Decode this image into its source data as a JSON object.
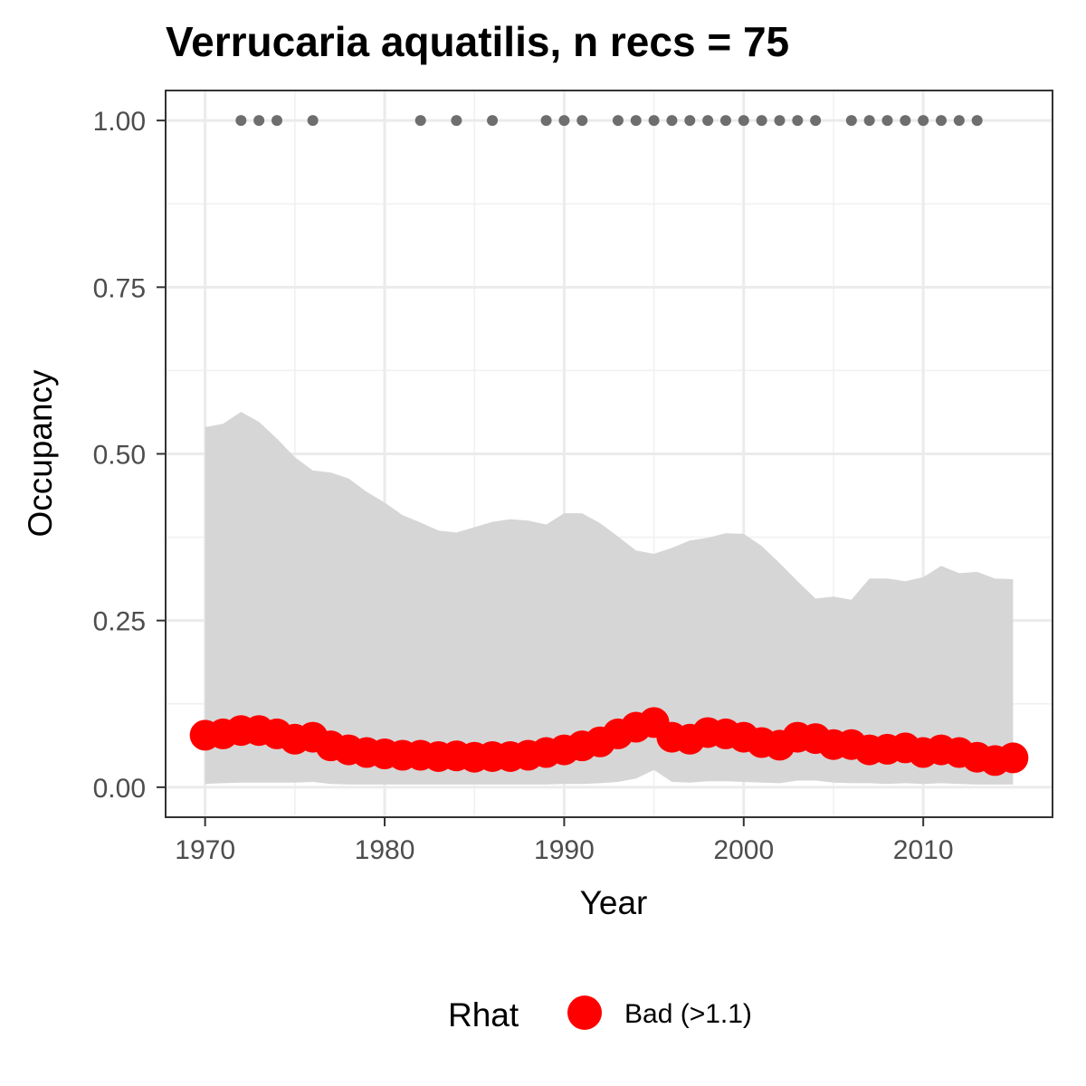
{
  "chart_data": {
    "type": "line",
    "title": "Verrucaria aquatilis, n recs = 75",
    "xlabel": "Year",
    "ylabel": "Occupancy",
    "xlim": [
      1967.8,
      2017.2
    ],
    "ylim": [
      -0.045,
      1.045
    ],
    "x_ticks": [
      1970,
      1980,
      1990,
      2000,
      2010
    ],
    "x_tick_labels": [
      "1970",
      "1980",
      "1990",
      "2000",
      "2010"
    ],
    "y_ticks": [
      0,
      0.25,
      0.5,
      0.75,
      1.0
    ],
    "y_tick_labels": [
      "0.00",
      "0.25",
      "0.50",
      "0.75",
      "1.00"
    ],
    "grid": true,
    "legend": {
      "title": "Rhat",
      "position": "bottom",
      "items": [
        {
          "label": "Bad (>1.1)",
          "color": "#ff0000"
        }
      ]
    },
    "x": [
      1970,
      1971,
      1972,
      1973,
      1974,
      1975,
      1976,
      1977,
      1978,
      1979,
      1980,
      1981,
      1982,
      1983,
      1984,
      1985,
      1986,
      1987,
      1988,
      1989,
      1990,
      1991,
      1992,
      1993,
      1994,
      1995,
      1996,
      1997,
      1998,
      1999,
      2000,
      2001,
      2002,
      2003,
      2004,
      2005,
      2006,
      2007,
      2008,
      2009,
      2010,
      2011,
      2012,
      2013,
      2014,
      2015
    ],
    "series": [
      {
        "name": "Bad (>1.1)",
        "color": "#ff0000",
        "mean": [
          0.078,
          0.08,
          0.085,
          0.085,
          0.08,
          0.072,
          0.075,
          0.062,
          0.056,
          0.052,
          0.05,
          0.048,
          0.048,
          0.046,
          0.047,
          0.045,
          0.046,
          0.046,
          0.048,
          0.052,
          0.056,
          0.062,
          0.068,
          0.08,
          0.09,
          0.097,
          0.075,
          0.072,
          0.082,
          0.08,
          0.075,
          0.067,
          0.063,
          0.075,
          0.073,
          0.064,
          0.064,
          0.056,
          0.057,
          0.059,
          0.052,
          0.056,
          0.052,
          0.045,
          0.04,
          0.044
        ],
        "lower": [
          0.005,
          0.006,
          0.007,
          0.007,
          0.007,
          0.007,
          0.008,
          0.005,
          0.004,
          0.004,
          0.004,
          0.004,
          0.004,
          0.004,
          0.004,
          0.004,
          0.004,
          0.004,
          0.004,
          0.004,
          0.005,
          0.005,
          0.006,
          0.008,
          0.013,
          0.026,
          0.008,
          0.007,
          0.009,
          0.009,
          0.008,
          0.007,
          0.006,
          0.01,
          0.01,
          0.007,
          0.006,
          0.006,
          0.005,
          0.006,
          0.005,
          0.006,
          0.005,
          0.004,
          0.004,
          0.004
        ]
      }
    ],
    "upper": [
      0.54,
      0.545,
      0.563,
      0.548,
      0.523,
      0.495,
      0.475,
      0.472,
      0.463,
      0.443,
      0.427,
      0.408,
      0.397,
      0.385,
      0.382,
      0.39,
      0.398,
      0.402,
      0.4,
      0.394,
      0.411,
      0.411,
      0.396,
      0.376,
      0.355,
      0.35,
      0.359,
      0.37,
      0.374,
      0.381,
      0.38,
      0.362,
      0.336,
      0.309,
      0.283,
      0.286,
      0.281,
      0.313,
      0.313,
      0.309,
      0.315,
      0.332,
      0.321,
      0.323,
      0.313,
      0.312
    ],
    "records": {
      "y": 1.0,
      "years": [
        1972,
        1973,
        1974,
        1976,
        1982,
        1984,
        1986,
        1989,
        1990,
        1991,
        1993,
        1994,
        1995,
        1996,
        1997,
        1998,
        1999,
        2000,
        2001,
        2002,
        2003,
        2004,
        2006,
        2007,
        2008,
        2009,
        2010,
        2011,
        2012,
        2013
      ]
    }
  }
}
